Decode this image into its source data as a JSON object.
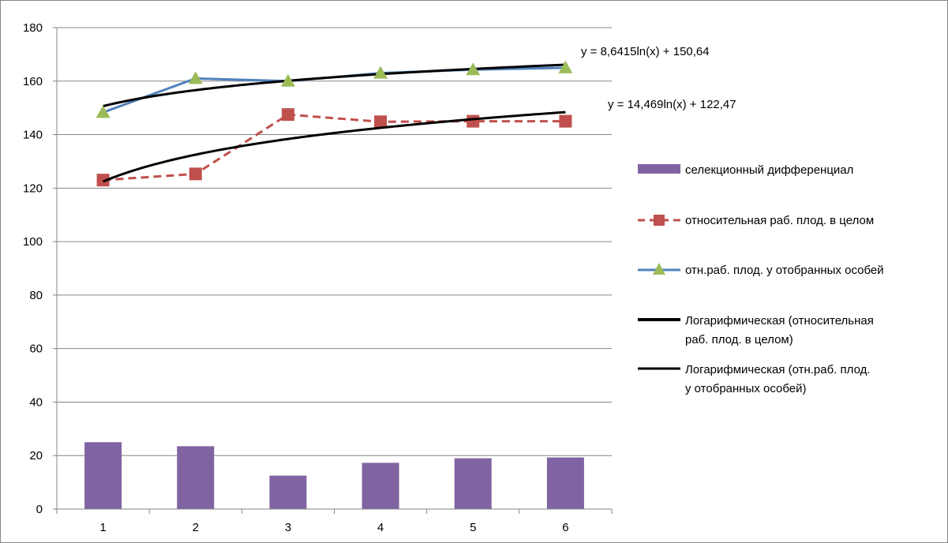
{
  "chart_data": {
    "type": "bar",
    "categories": [
      "1",
      "2",
      "3",
      "4",
      "5",
      "6"
    ],
    "ylim": [
      0,
      180
    ],
    "yticks": [
      0,
      20,
      40,
      60,
      80,
      100,
      120,
      140,
      160,
      180
    ],
    "grid": "horizontal",
    "legend_position": "right",
    "series": [
      {
        "name": "селекционный дифференциал",
        "type": "bar",
        "color": "#8064a2",
        "values": [
          25,
          23.5,
          12.5,
          17.3,
          19,
          19.3
        ]
      },
      {
        "name": "относительная раб. плод. в целом",
        "type": "line",
        "style": "dashed",
        "marker": "square",
        "color": "#c0504d",
        "values": [
          123,
          125.3,
          147.5,
          144.8,
          145,
          145
        ]
      },
      {
        "name": "отн.раб. плод. у отобранных особей",
        "type": "line",
        "marker": "triangle",
        "color": "#4f81bd",
        "marker_color": "#9bbb59",
        "values": [
          148.3,
          161,
          160,
          163,
          164.3,
          165
        ]
      }
    ],
    "trendlines": [
      {
        "name": "Логарифмическая (относительная раб. плод. в целом)",
        "type": "logarithmic",
        "a": 14.469,
        "b": 122.47,
        "equation": "y = 14,469ln(x) + 122,47"
      },
      {
        "name": "Логарифмическая (отн.раб. плод. у отобранных особей)",
        "type": "logarithmic",
        "a": 8.6415,
        "b": 150.64,
        "equation": "y = 8,6415ln(x) + 150,64"
      }
    ]
  }
}
